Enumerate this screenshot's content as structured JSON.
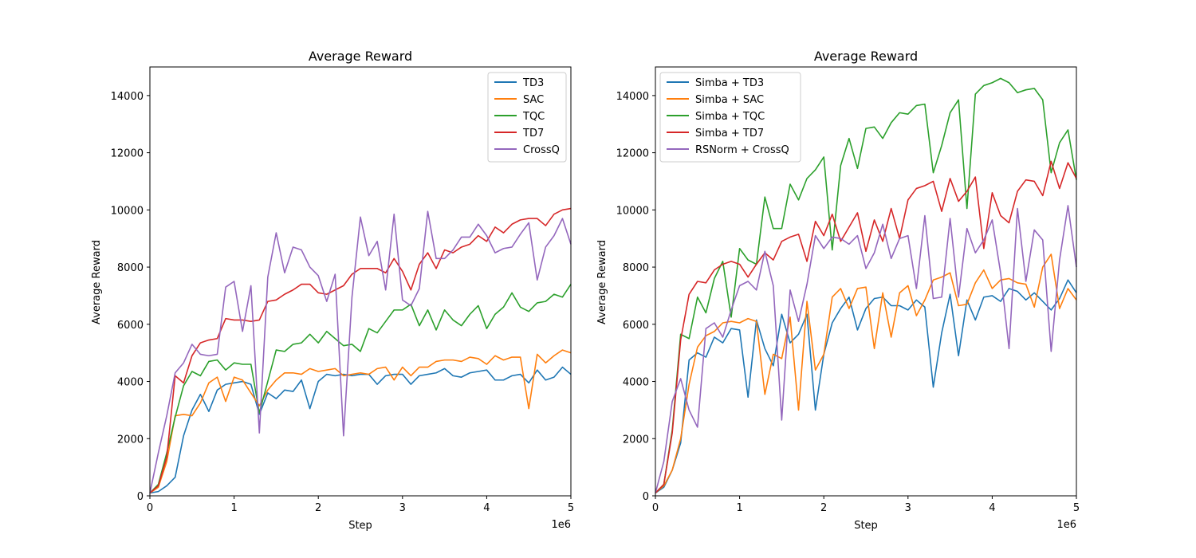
{
  "figure": {
    "background": "#ffffff"
  },
  "chart_data": [
    {
      "type": "line",
      "title": "Average Reward",
      "xlabel": "Step",
      "ylabel": "Average Reward",
      "x_offset_label": "1e6",
      "xlim": [
        0,
        5
      ],
      "ylim": [
        0,
        15000
      ],
      "x_ticks": [
        0,
        1,
        2,
        3,
        4,
        5
      ],
      "y_ticks": [
        0,
        2000,
        4000,
        6000,
        8000,
        10000,
        12000,
        14000
      ],
      "grid": false,
      "legend": "top-right",
      "x": [
        0,
        0.1,
        0.2,
        0.3,
        0.4,
        0.5,
        0.6,
        0.7,
        0.8,
        0.9,
        1.0,
        1.1,
        1.2,
        1.3,
        1.4,
        1.5,
        1.6,
        1.7,
        1.8,
        1.9,
        2.0,
        2.1,
        2.2,
        2.3,
        2.4,
        2.5,
        2.6,
        2.7,
        2.8,
        2.9,
        3.0,
        3.1,
        3.2,
        3.3,
        3.4,
        3.5,
        3.6,
        3.7,
        3.8,
        3.9,
        4.0,
        4.1,
        4.2,
        4.3,
        4.4,
        4.5,
        4.6,
        4.7,
        4.8,
        4.9,
        5.0
      ],
      "series": [
        {
          "name": "TD3",
          "color": "#1f77b4",
          "values": [
            100,
            150,
            350,
            650,
            2100,
            3000,
            3550,
            2950,
            3700,
            3900,
            3950,
            4000,
            3900,
            2850,
            3600,
            3400,
            3700,
            3650,
            4050,
            3050,
            4000,
            4250,
            4200,
            4250,
            4200,
            4250,
            4250,
            3900,
            4200,
            4250,
            4250,
            3900,
            4200,
            4250,
            4300,
            4450,
            4200,
            4150,
            4300,
            4350,
            4400,
            4050,
            4050,
            4200,
            4250,
            3950,
            4400,
            4050,
            4150,
            4500,
            4250
          ]
        },
        {
          "name": "SAC",
          "color": "#ff7f0e",
          "values": [
            100,
            300,
            1200,
            2800,
            2850,
            2800,
            3250,
            3950,
            4150,
            3300,
            4150,
            4050,
            3600,
            3150,
            3700,
            4050,
            4300,
            4300,
            4250,
            4450,
            4350,
            4400,
            4450,
            4200,
            4250,
            4300,
            4250,
            4450,
            4500,
            4050,
            4500,
            4200,
            4500,
            4500,
            4700,
            4750,
            4750,
            4700,
            4850,
            4800,
            4600,
            4900,
            4750,
            4850,
            4850,
            3050,
            4950,
            4650,
            4900,
            5100,
            5000
          ]
        },
        {
          "name": "TQC",
          "color": "#2ca02c",
          "values": [
            100,
            400,
            1500,
            2750,
            3850,
            4350,
            4200,
            4700,
            4750,
            4400,
            4650,
            4600,
            4600,
            2900,
            4000,
            5100,
            5050,
            5300,
            5350,
            5650,
            5350,
            5750,
            5500,
            5250,
            5300,
            5050,
            5850,
            5700,
            6100,
            6500,
            6500,
            6700,
            5950,
            6500,
            5800,
            6500,
            6150,
            5950,
            6350,
            6650,
            5850,
            6350,
            6600,
            7100,
            6600,
            6450,
            6750,
            6800,
            7050,
            6950,
            7400
          ]
        },
        {
          "name": "TD7",
          "color": "#d62728",
          "values": [
            100,
            350,
            1350,
            4200,
            3950,
            4900,
            5350,
            5450,
            5500,
            6200,
            6150,
            6150,
            6100,
            6150,
            6800,
            6850,
            7050,
            7200,
            7400,
            7400,
            7100,
            7050,
            7200,
            7350,
            7750,
            7950,
            7950,
            7950,
            7800,
            8300,
            7850,
            7200,
            8100,
            8500,
            7950,
            8600,
            8500,
            8700,
            8800,
            9100,
            8900,
            9400,
            9200,
            9500,
            9650,
            9700,
            9700,
            9450,
            9850,
            10000,
            10050
          ]
        },
        {
          "name": "CrossQ",
          "color": "#9467bd",
          "values": [
            100,
            1500,
            2800,
            4300,
            4650,
            5300,
            4950,
            4900,
            4950,
            7300,
            7500,
            5750,
            7350,
            2200,
            7650,
            9200,
            7800,
            8700,
            8600,
            8000,
            7700,
            6800,
            7750,
            2100,
            6950,
            9750,
            8400,
            8900,
            7200,
            9850,
            6850,
            6650,
            7250,
            9950,
            8300,
            8300,
            8600,
            9050,
            9050,
            9500,
            9100,
            8500,
            8650,
            8700,
            9150,
            9550,
            7550,
            8700,
            9100,
            9700,
            8800
          ]
        }
      ]
    },
    {
      "type": "line",
      "title": "Average Reward",
      "xlabel": "Step",
      "ylabel": "Average Reward",
      "x_offset_label": "1e6",
      "xlim": [
        0,
        5
      ],
      "ylim": [
        0,
        15000
      ],
      "x_ticks": [
        0,
        1,
        2,
        3,
        4,
        5
      ],
      "y_ticks": [
        0,
        2000,
        4000,
        6000,
        8000,
        10000,
        12000,
        14000
      ],
      "grid": false,
      "legend": "top-left",
      "x": [
        0,
        0.1,
        0.2,
        0.3,
        0.4,
        0.5,
        0.6,
        0.7,
        0.8,
        0.9,
        1.0,
        1.1,
        1.2,
        1.3,
        1.4,
        1.5,
        1.6,
        1.7,
        1.8,
        1.9,
        2.0,
        2.1,
        2.2,
        2.3,
        2.4,
        2.5,
        2.6,
        2.7,
        2.8,
        2.9,
        3.0,
        3.1,
        3.2,
        3.3,
        3.4,
        3.5,
        3.6,
        3.7,
        3.8,
        3.9,
        4.0,
        4.1,
        4.2,
        4.3,
        4.4,
        4.5,
        4.6,
        4.7,
        4.8,
        4.9,
        5.0
      ],
      "series": [
        {
          "name": "Simba + TD3",
          "color": "#1f77b4",
          "values": [
            100,
            300,
            900,
            1850,
            4750,
            5000,
            4850,
            5550,
            5350,
            5850,
            5800,
            3450,
            6150,
            5150,
            4550,
            6350,
            5350,
            5650,
            6350,
            3000,
            4950,
            6050,
            6550,
            6950,
            5800,
            6550,
            6900,
            6950,
            6650,
            6650,
            6500,
            6850,
            6600,
            3800,
            5700,
            7050,
            4900,
            6850,
            6150,
            6950,
            7000,
            6800,
            7250,
            7150,
            6850,
            7100,
            6800,
            6500,
            6900,
            7550,
            7100
          ]
        },
        {
          "name": "Simba + SAC",
          "color": "#ff7f0e",
          "values": [
            100,
            350,
            900,
            2000,
            3900,
            5200,
            5600,
            5750,
            6050,
            6100,
            6050,
            6200,
            6100,
            3550,
            4950,
            4800,
            6250,
            3000,
            6800,
            4400,
            4950,
            6950,
            7250,
            6550,
            7250,
            7300,
            5150,
            7100,
            5550,
            7100,
            7350,
            6300,
            6850,
            7550,
            7650,
            7800,
            6650,
            6700,
            7450,
            7900,
            7250,
            7550,
            7600,
            7450,
            7400,
            6600,
            8000,
            8450,
            6550,
            7250,
            6850
          ]
        },
        {
          "name": "Simba + TQC",
          "color": "#2ca02c",
          "values": [
            100,
            400,
            2300,
            5650,
            5500,
            6950,
            6400,
            7600,
            8200,
            6250,
            8650,
            8250,
            8100,
            10450,
            9350,
            9350,
            10900,
            10350,
            11100,
            11400,
            11850,
            8600,
            11550,
            12500,
            11450,
            12850,
            12900,
            12500,
            13050,
            13400,
            13350,
            13650,
            13700,
            11300,
            12250,
            13400,
            13850,
            10050,
            14050,
            14350,
            14450,
            14600,
            14450,
            14100,
            14200,
            14250,
            13850,
            11300,
            12350,
            12800,
            11050
          ]
        },
        {
          "name": "Simba + TD7",
          "color": "#d62728",
          "values": [
            100,
            400,
            2200,
            5450,
            7050,
            7500,
            7450,
            7900,
            8100,
            8200,
            8100,
            7650,
            8100,
            8500,
            8250,
            8900,
            9050,
            9150,
            8200,
            9600,
            9100,
            9850,
            8900,
            9400,
            9900,
            8550,
            9650,
            8900,
            10050,
            9000,
            10350,
            10750,
            10850,
            11000,
            9950,
            11100,
            10300,
            10650,
            11150,
            8650,
            10600,
            9800,
            9550,
            10650,
            11050,
            11000,
            10500,
            11700,
            10750,
            11650,
            11100
          ]
        },
        {
          "name": "RSNorm + CrossQ",
          "color": "#9467bd",
          "values": [
            100,
            1200,
            3300,
            4100,
            3000,
            2400,
            5850,
            6050,
            5550,
            6500,
            7350,
            7500,
            7200,
            8550,
            7350,
            2650,
            7200,
            6100,
            7400,
            9100,
            8650,
            9050,
            9000,
            8800,
            9100,
            7950,
            8500,
            9500,
            8300,
            9000,
            9100,
            7250,
            9800,
            6900,
            6950,
            9700,
            6950,
            9350,
            8500,
            8950,
            9650,
            7800,
            5150,
            10050,
            7500,
            9300,
            8950,
            5050,
            8250,
            10150,
            8000
          ]
        }
      ]
    }
  ]
}
